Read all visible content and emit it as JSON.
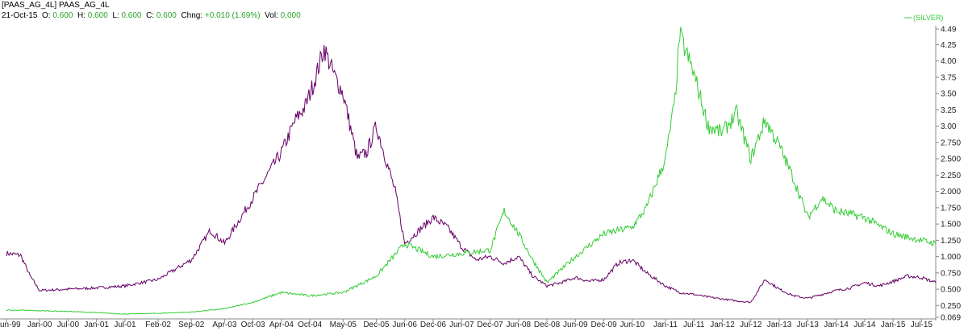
{
  "header": {
    "symbol": "[PAAS_AG_4L] PAAS_AG_4L",
    "date": "21-Oct-15",
    "o_label": "O:",
    "o_value": "0.600",
    "h_label": "H:",
    "h_value": "0.600",
    "l_label": "L:",
    "l_value": "0.600",
    "c_label": "C:",
    "c_value": "0.600",
    "chng_label": "Chng:",
    "chng_value": "+0.010 (1.69%)",
    "vol_label": "Vol:",
    "vol_value": "0,000"
  },
  "colors": {
    "purple": "#660066",
    "green": "#33cc33",
    "axis": "#888888"
  },
  "chart_data": {
    "type": "line",
    "legend": "(SILVER)",
    "legend_position": "top-right",
    "grid": false,
    "ylim": [
      0.069,
      4.49
    ],
    "y_ticks": [
      "4.49",
      "4.25",
      "4.00",
      "3.75",
      "3.50",
      "3.25",
      "3.00",
      "2.750",
      "2.500",
      "2.250",
      "2.000",
      "1.750",
      "1.500",
      "1.250",
      "1.000",
      "0.750",
      "0.500",
      "0.250",
      "0.069"
    ],
    "x_ticks": [
      "un-99",
      "Jan-00",
      "Jul-00",
      "Jan-01",
      "Jul-01",
      "Feb-02",
      "Sep-02",
      "Apr-03",
      "Oct-03",
      "Apr-04",
      "Oct-04",
      "May-05",
      "Dec-05",
      "Jun-06",
      "Dec-06",
      "Jun-07",
      "Dec-07",
      "Jun-08",
      "Dec-08",
      "Jun-09",
      "Dec-09",
      "Jun-10",
      "Jan-11",
      "Jul-11",
      "Jan-12",
      "Jul-12",
      "Jan-13",
      "Jul-13",
      "Jan-14",
      "Jul-14",
      "Jan-15",
      "Jul-15"
    ],
    "series": [
      {
        "name": "PAAS_AG_4L",
        "x": [
          "Jun-99",
          "Sep-99",
          "Nov-99",
          "Jan-00",
          "Jul-00",
          "Jan-01",
          "Jul-01",
          "Feb-02",
          "Sep-02",
          "Jan-03",
          "Apr-03",
          "Oct-03",
          "Apr-04",
          "Jul-04",
          "Sep-04",
          "Nov-04",
          "Jan-05",
          "Mar-05",
          "May-05",
          "Aug-05",
          "Oct-05",
          "Dec-05",
          "Feb-06",
          "Apr-06",
          "Jun-06",
          "Sep-06",
          "Dec-06",
          "Mar-07",
          "Jun-07",
          "Sep-07",
          "Dec-07",
          "Mar-08",
          "Jun-08",
          "Sep-08",
          "Dec-08",
          "Mar-09",
          "Jun-09",
          "Sep-09",
          "Dec-09",
          "Mar-10",
          "Jun-10",
          "Sep-10",
          "Jan-11",
          "Apr-11",
          "Jul-11",
          "Oct-11",
          "Jan-12",
          "Apr-12",
          "Jul-12",
          "Oct-12",
          "Jan-13",
          "Apr-13",
          "Jul-13",
          "Oct-13",
          "Jan-14",
          "Apr-14",
          "Jul-14",
          "Oct-14",
          "Jan-15",
          "Apr-15",
          "Jul-15",
          "Oct-15"
        ],
        "values": [
          1.05,
          1.02,
          0.7,
          0.48,
          0.5,
          0.52,
          0.55,
          0.65,
          0.95,
          1.4,
          1.2,
          1.9,
          2.6,
          3.1,
          3.3,
          3.7,
          4.2,
          3.8,
          3.5,
          2.5,
          2.6,
          3.0,
          2.5,
          2.0,
          1.2,
          1.4,
          1.6,
          1.45,
          1.15,
          0.95,
          1.0,
          0.9,
          1.0,
          0.7,
          0.55,
          0.6,
          0.68,
          0.62,
          0.65,
          0.9,
          0.95,
          0.75,
          0.55,
          0.45,
          0.42,
          0.38,
          0.35,
          0.32,
          0.3,
          0.65,
          0.5,
          0.4,
          0.36,
          0.42,
          0.48,
          0.52,
          0.6,
          0.55,
          0.62,
          0.7,
          0.68,
          0.6
        ]
      },
      {
        "name": "(SILVER)",
        "x": [
          "Jun-99",
          "Jan-00",
          "Jul-00",
          "Jan-01",
          "Jul-01",
          "Feb-02",
          "Sep-02",
          "Apr-03",
          "Oct-03",
          "Apr-04",
          "Oct-04",
          "May-05",
          "Dec-05",
          "Jun-06",
          "Dec-06",
          "Jun-07",
          "Dec-07",
          "Mar-08",
          "Jun-08",
          "Sep-08",
          "Dec-08",
          "Jun-09",
          "Dec-09",
          "Jun-10",
          "Sep-10",
          "Jan-11",
          "Mar-11",
          "Apr-11",
          "Jul-11",
          "Oct-11",
          "Jan-12",
          "Apr-12",
          "Jul-12",
          "Oct-12",
          "Jan-13",
          "Apr-13",
          "Jul-13",
          "Oct-13",
          "Jan-14",
          "Jul-14",
          "Jan-15",
          "Jul-15",
          "Oct-15"
        ],
        "values": [
          0.18,
          0.17,
          0.16,
          0.14,
          0.12,
          0.13,
          0.15,
          0.2,
          0.3,
          0.45,
          0.4,
          0.45,
          0.7,
          1.2,
          1.0,
          1.05,
          1.1,
          1.7,
          1.35,
          0.95,
          0.6,
          1.0,
          1.35,
          1.45,
          1.75,
          2.5,
          3.4,
          4.4,
          3.8,
          3.0,
          2.9,
          3.2,
          2.5,
          3.1,
          2.7,
          2.2,
          1.6,
          1.9,
          1.7,
          1.6,
          1.35,
          1.25,
          1.2
        ]
      }
    ]
  }
}
